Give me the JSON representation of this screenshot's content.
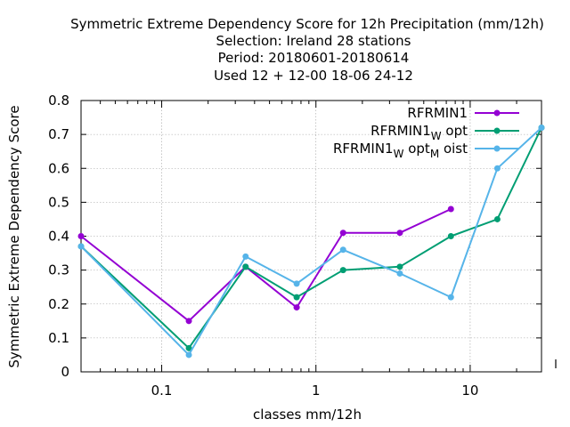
{
  "chart_data": {
    "type": "line",
    "title_lines": [
      "Symmetric Extreme Dependency Score  for 12h Precipitation (mm/12h)",
      "Selection: Ireland      28 stations",
      "Period: 20180601-20180614",
      "Used  12 + 12-00 18-06 24-12"
    ],
    "xlabel": "classes mm/12h",
    "ylabel": "Symmetric Extreme Dependency Score",
    "x_scale": "log",
    "xlim": [
      0.03,
      29
    ],
    "ylim": [
      0,
      0.8
    ],
    "x_ticks": [
      {
        "value": 0.1,
        "label": "0.1"
      },
      {
        "value": 1,
        "label": "1"
      },
      {
        "value": 10,
        "label": "10"
      }
    ],
    "y_ticks": [
      {
        "value": 0,
        "label": "0"
      },
      {
        "value": 0.1,
        "label": "0.1"
      },
      {
        "value": 0.2,
        "label": "0.2"
      },
      {
        "value": 0.3,
        "label": "0.3"
      },
      {
        "value": 0.4,
        "label": "0.4"
      },
      {
        "value": 0.5,
        "label": "0.5"
      },
      {
        "value": 0.6,
        "label": "0.6"
      },
      {
        "value": 0.7,
        "label": "0.7"
      },
      {
        "value": 0.8,
        "label": "0.8"
      }
    ],
    "grid": true,
    "legend_position": "top-right",
    "series": [
      {
        "name": "RFRMIN1",
        "name_main": "RFRMIN1",
        "name_parts": [],
        "color": "#9400d3",
        "x": [
          0.03,
          0.15,
          0.35,
          0.75,
          1.5,
          3.5,
          7.5
        ],
        "y": [
          0.4,
          0.15,
          0.31,
          0.19,
          0.41,
          0.41,
          0.48
        ]
      },
      {
        "name": "RFRMIN1_W opt",
        "name_main": "RFRMIN1",
        "name_parts": [
          {
            "t": "W",
            "sub": true
          },
          {
            "t": " opt",
            "sub": false
          }
        ],
        "color": "#009e73",
        "x": [
          0.03,
          0.15,
          0.35,
          0.75,
          1.5,
          3.5,
          7.5,
          15,
          29
        ],
        "y": [
          0.37,
          0.07,
          0.31,
          0.22,
          0.3,
          0.31,
          0.4,
          0.45,
          0.72
        ]
      },
      {
        "name": "RFRMIN1_W opt_M oist",
        "name_main": "RFRMIN1",
        "name_parts": [
          {
            "t": "W",
            "sub": true
          },
          {
            "t": " opt",
            "sub": false
          },
          {
            "t": "M",
            "sub": true
          },
          {
            "t": " oist",
            "sub": false
          }
        ],
        "color": "#56b4e9",
        "x": [
          0.03,
          0.15,
          0.35,
          0.75,
          1.5,
          3.5,
          7.5,
          15,
          29
        ],
        "y": [
          0.37,
          0.05,
          0.34,
          0.26,
          0.36,
          0.29,
          0.22,
          0.6,
          0.72
        ]
      }
    ]
  }
}
